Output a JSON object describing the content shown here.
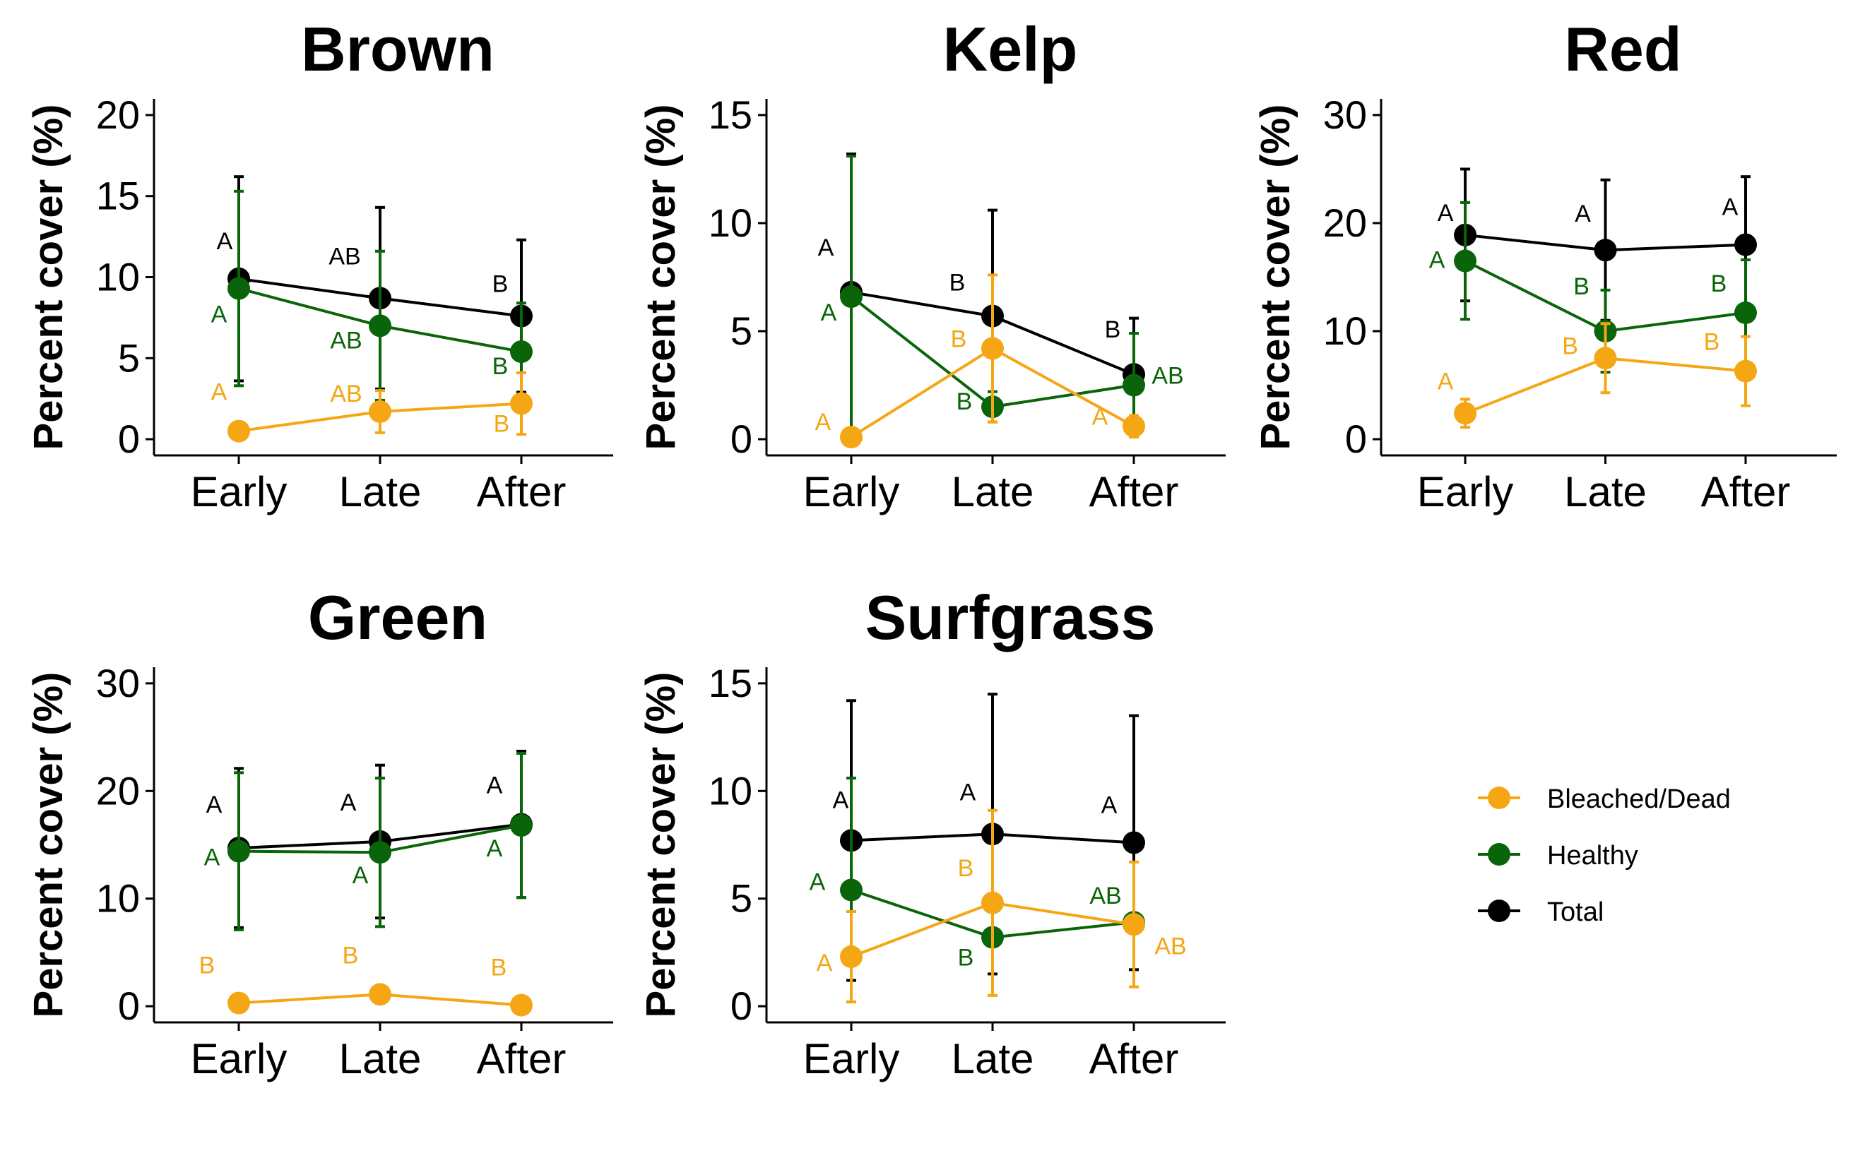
{
  "colors": {
    "Bleached/Dead": "#F5A614",
    "Healthy": "#0A640A",
    "Total": "#000000"
  },
  "legend": [
    {
      "name": "Bleached/Dead",
      "icon": "circle-line-marker"
    },
    {
      "name": "Healthy",
      "icon": "circle-line-marker"
    },
    {
      "name": "Total",
      "icon": "circle-line-marker"
    }
  ],
  "chart_data": [
    {
      "type": "line",
      "title": "Brown",
      "ylabel": "Percent cover (%)",
      "xlabel": "",
      "categories": [
        "Early",
        "Late",
        "After"
      ],
      "ylim": [
        -1,
        21
      ],
      "yticks": [
        0,
        5,
        10,
        15,
        20
      ],
      "series": [
        {
          "name": "Bleached/Dead",
          "values": [
            0.5,
            1.7,
            2.2
          ],
          "err": [
            0.3,
            1.3,
            1.9
          ],
          "letters": [
            "A",
            "AB",
            "B"
          ]
        },
        {
          "name": "Healthy",
          "values": [
            9.3,
            7.0,
            5.4
          ],
          "err": [
            6.0,
            4.6,
            3.0
          ],
          "letters": [
            "A",
            "AB",
            "B"
          ]
        },
        {
          "name": "Total",
          "values": [
            9.9,
            8.7,
            7.6
          ],
          "err": [
            6.3,
            5.6,
            4.7
          ],
          "letters": [
            "A",
            "AB",
            "B"
          ]
        }
      ]
    },
    {
      "type": "line",
      "title": "Kelp",
      "ylabel": "Percent cover (%)",
      "xlabel": "",
      "categories": [
        "Early",
        "Late",
        "After"
      ],
      "ylim": [
        -0.75,
        15.75
      ],
      "yticks": [
        0,
        5,
        10,
        15
      ],
      "series": [
        {
          "name": "Bleached/Dead",
          "values": [
            0.1,
            4.2,
            0.6
          ],
          "err": [
            0.1,
            3.4,
            0.5
          ],
          "letters": [
            "A",
            "B",
            "A"
          ]
        },
        {
          "name": "Healthy",
          "values": [
            6.6,
            1.5,
            2.5
          ],
          "err": [
            6.5,
            0.7,
            2.4
          ],
          "letters": [
            "A",
            "B",
            "AB"
          ]
        },
        {
          "name": "Total",
          "values": [
            6.8,
            5.7,
            3.0
          ],
          "err": [
            6.4,
            4.9,
            2.6
          ],
          "letters": [
            "A",
            "B",
            "B"
          ]
        }
      ]
    },
    {
      "type": "line",
      "title": "Red",
      "ylabel": "Percent cover (%)",
      "xlabel": "",
      "categories": [
        "Early",
        "Late",
        "After"
      ],
      "ylim": [
        -1.5,
        31.5
      ],
      "yticks": [
        0,
        10,
        20,
        30
      ],
      "series": [
        {
          "name": "Bleached/Dead",
          "values": [
            2.4,
            7.5,
            6.3
          ],
          "err": [
            1.3,
            3.2,
            3.2
          ],
          "letters": [
            "A",
            "B",
            "B"
          ]
        },
        {
          "name": "Healthy",
          "values": [
            16.5,
            10.0,
            11.7
          ],
          "err": [
            5.4,
            3.8,
            4.9
          ],
          "letters": [
            "A",
            "B",
            "B"
          ]
        },
        {
          "name": "Total",
          "values": [
            18.9,
            17.5,
            18.0
          ],
          "err": [
            6.1,
            6.5,
            6.3
          ],
          "letters": [
            "A",
            "A",
            "A"
          ]
        }
      ]
    },
    {
      "type": "line",
      "title": "Green",
      "ylabel": "Percent cover (%)",
      "xlabel": "",
      "categories": [
        "Early",
        "Late",
        "After"
      ],
      "ylim": [
        -1.5,
        31.5
      ],
      "yticks": [
        0,
        10,
        20,
        30
      ],
      "series": [
        {
          "name": "Bleached/Dead",
          "values": [
            0.3,
            1.1,
            0.1
          ],
          "err": [
            0,
            0,
            0
          ],
          "letters": [
            "B",
            "B",
            "B"
          ]
        },
        {
          "name": "Healthy",
          "values": [
            14.4,
            14.3,
            16.8
          ],
          "err": [
            7.3,
            6.9,
            6.7
          ],
          "letters": [
            "A",
            "A",
            "A"
          ]
        },
        {
          "name": "Total",
          "values": [
            14.7,
            15.3,
            16.9
          ],
          "err": [
            7.4,
            7.1,
            6.8
          ],
          "letters": [
            "A",
            "A",
            "A"
          ]
        }
      ]
    },
    {
      "type": "line",
      "title": "Surfgrass",
      "ylabel": "Percent cover (%)",
      "xlabel": "",
      "categories": [
        "Early",
        "Late",
        "After"
      ],
      "ylim": [
        -0.75,
        15.75
      ],
      "yticks": [
        0,
        5,
        10,
        15
      ],
      "series": [
        {
          "name": "Bleached/Dead",
          "values": [
            2.3,
            4.8,
            3.8
          ],
          "err": [
            2.1,
            4.3,
            2.9
          ],
          "letters": [
            "A",
            "B",
            "AB"
          ]
        },
        {
          "name": "Healthy",
          "values": [
            5.4,
            3.2,
            3.9
          ],
          "err": [
            5.2,
            0,
            0
          ],
          "letters": [
            "A",
            "B",
            "AB"
          ]
        },
        {
          "name": "Total",
          "values": [
            7.7,
            8.0,
            7.6
          ],
          "err": [
            6.5,
            6.5,
            5.9
          ],
          "letters": [
            "A",
            "A",
            "A"
          ]
        }
      ]
    }
  ]
}
